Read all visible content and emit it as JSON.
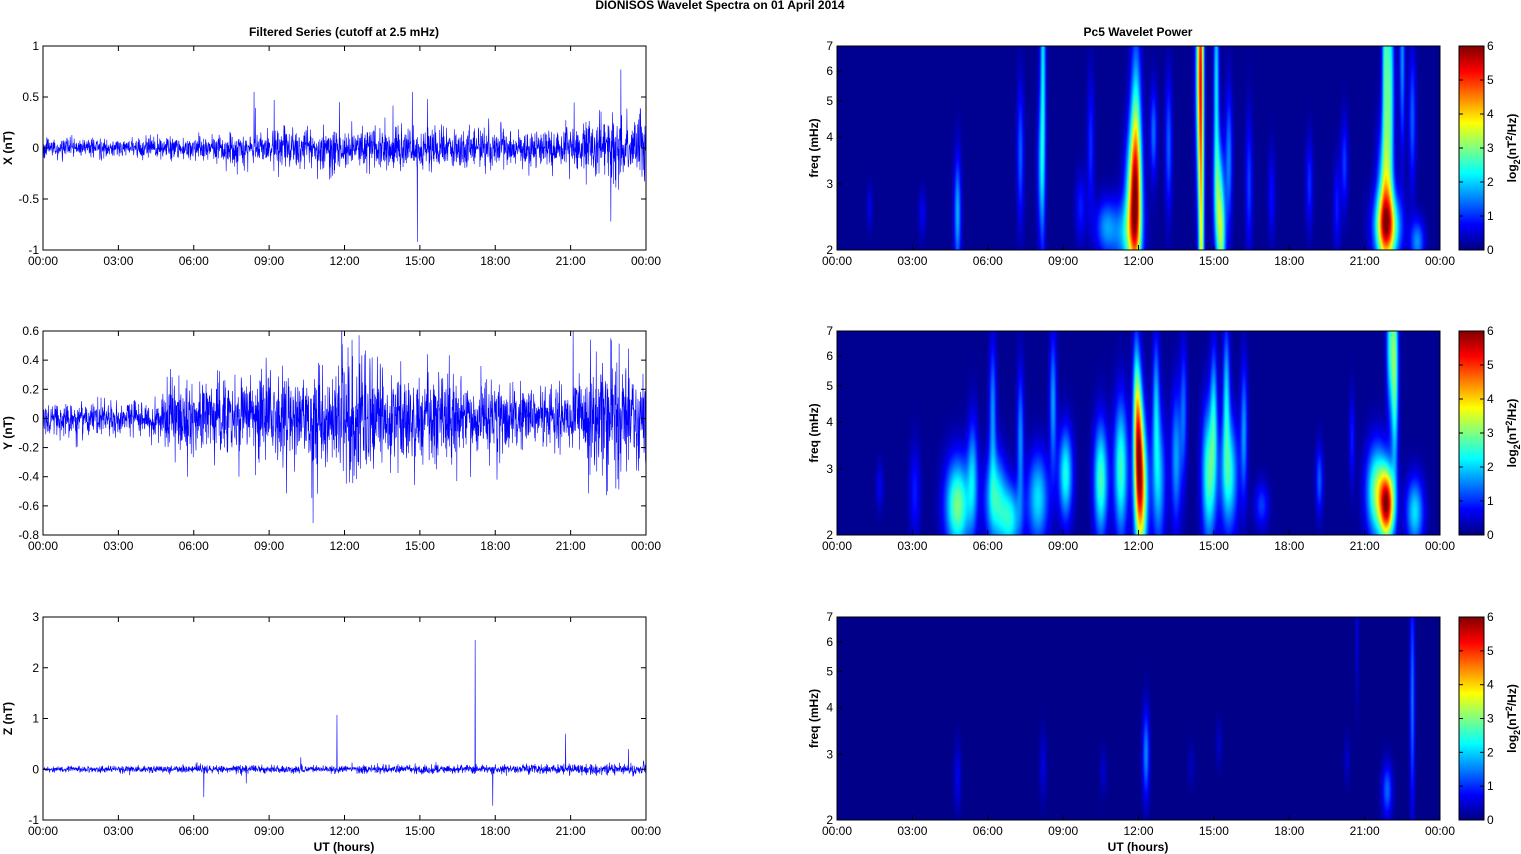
{
  "figure": {
    "suptitle": "DIONISOS Wavelet Spectra on 01 April     2014",
    "left_title": "Filtered Series (cutoff at 2.5 mHz)",
    "right_title": "Pc5 Wavelet Power",
    "xlabel": "UT (hours)",
    "freq_label": "freq (mHz)",
    "colorbar_label": "log2(nT2/Hz)"
  },
  "chart_data": [
    {
      "id": "series-x",
      "type": "line",
      "series_name": "X",
      "ylabel": "X (nT)",
      "ylim": [
        -1,
        1
      ],
      "yticks": [
        -1,
        -0.5,
        0,
        0.5,
        1
      ],
      "yticklabels": [
        "-1",
        "-0.5",
        "0",
        "0.5",
        "1"
      ],
      "xlim": [
        0,
        24
      ],
      "xticks": [
        0,
        3,
        6,
        9,
        12,
        15,
        18,
        21,
        24
      ],
      "xticklabels": [
        "00:00",
        "03:00",
        "06:00",
        "09:00",
        "12:00",
        "15:00",
        "18:00",
        "21:00",
        "00:00"
      ],
      "color": "#0000ff",
      "noise_std": 0.05,
      "envelope": [
        [
          0,
          0.045
        ],
        [
          4,
          0.045
        ],
        [
          7.5,
          0.07
        ],
        [
          9,
          0.09
        ],
        [
          12,
          0.1
        ],
        [
          14.5,
          0.12
        ],
        [
          16,
          0.1
        ],
        [
          19,
          0.08
        ],
        [
          21,
          0.1
        ],
        [
          22.5,
          0.17
        ],
        [
          24,
          0.13
        ]
      ],
      "spikes": [
        [
          8.4,
          0.55
        ],
        [
          9.2,
          0.47
        ],
        [
          11.8,
          0.45
        ],
        [
          14.9,
          -0.92
        ],
        [
          14.7,
          0.55
        ],
        [
          15.3,
          0.48
        ],
        [
          22.6,
          -0.72
        ],
        [
          23.0,
          0.77
        ],
        [
          23.7,
          0.28
        ]
      ]
    },
    {
      "id": "series-y",
      "type": "line",
      "series_name": "Y",
      "ylabel": "Y (nT)",
      "ylim": [
        -0.8,
        0.6
      ],
      "yticks": [
        -0.8,
        -0.6,
        -0.4,
        -0.2,
        0,
        0.2,
        0.4,
        0.6
      ],
      "yticklabels": [
        "-0.8",
        "-0.6",
        "-0.4",
        "-0.2",
        "0",
        "0.2",
        "0.4",
        "0.6"
      ],
      "xlim": [
        0,
        24
      ],
      "xticks": [
        0,
        3,
        6,
        9,
        12,
        15,
        18,
        21,
        24
      ],
      "xticklabels": [
        "00:00",
        "03:00",
        "06:00",
        "09:00",
        "12:00",
        "15:00",
        "18:00",
        "21:00",
        "00:00"
      ],
      "color": "#0000ff",
      "noise_std": 0.05,
      "envelope": [
        [
          0,
          0.06
        ],
        [
          4.5,
          0.06
        ],
        [
          5,
          0.12
        ],
        [
          8,
          0.14
        ],
        [
          11,
          0.15
        ],
        [
          12.2,
          0.22
        ],
        [
          15,
          0.15
        ],
        [
          18,
          0.12
        ],
        [
          21,
          0.1
        ],
        [
          22.3,
          0.2
        ],
        [
          24,
          0.16
        ]
      ],
      "spikes": [
        [
          12.3,
          0.54
        ],
        [
          12.2,
          -0.44
        ],
        [
          7.8,
          -0.4
        ],
        [
          15.3,
          0.44
        ],
        [
          21.1,
          0.6
        ],
        [
          22.6,
          0.55
        ],
        [
          22.8,
          -0.48
        ],
        [
          23.3,
          0.48
        ],
        [
          23.7,
          -0.36
        ]
      ]
    },
    {
      "id": "series-z",
      "type": "line",
      "series_name": "Z",
      "ylabel": "Z (nT)",
      "ylim": [
        -1,
        3
      ],
      "yticks": [
        -1,
        0,
        1,
        2,
        3
      ],
      "yticklabels": [
        "-1",
        "0",
        "1",
        "2",
        "3"
      ],
      "xlim": [
        0,
        24
      ],
      "xticks": [
        0,
        3,
        6,
        9,
        12,
        15,
        18,
        21,
        24
      ],
      "xticklabels": [
        "00:00",
        "03:00",
        "06:00",
        "09:00",
        "12:00",
        "15:00",
        "18:00",
        "21:00",
        "00:00"
      ],
      "color": "#0000ff",
      "noise_std": 0.035,
      "envelope": [
        [
          0,
          0.03
        ],
        [
          5,
          0.035
        ],
        [
          12,
          0.04
        ],
        [
          17,
          0.045
        ],
        [
          21,
          0.05
        ],
        [
          24,
          0.06
        ]
      ],
      "spikes": [
        [
          6.4,
          -0.55
        ],
        [
          11.7,
          1.07
        ],
        [
          17.2,
          2.55
        ],
        [
          17.9,
          -0.72
        ],
        [
          20.8,
          0.7
        ],
        [
          23.3,
          0.4
        ]
      ]
    },
    {
      "id": "wavelet-x",
      "type": "heatmap",
      "series_name": "X",
      "ylabel": "freq (mHz)",
      "yscale": "log",
      "ylim": [
        2,
        7
      ],
      "yticks": [
        2,
        3,
        4,
        5,
        6,
        7
      ],
      "yticklabels": [
        "2",
        "3",
        "4",
        "5",
        "6",
        "7"
      ],
      "xlim": [
        0,
        24
      ],
      "xticks": [
        0,
        3,
        6,
        9,
        12,
        15,
        18,
        21,
        24
      ],
      "xticklabels": [
        "00:00",
        "03:00",
        "06:00",
        "09:00",
        "12:00",
        "15:00",
        "18:00",
        "21:00",
        "00:00"
      ],
      "colorbar": {
        "range": [
          0,
          6
        ],
        "ticks": [
          0,
          1,
          2,
          3,
          4,
          5,
          6
        ],
        "ticklabels": [
          "0",
          "1",
          "2",
          "3",
          "4",
          "5",
          "6"
        ],
        "colormap": "jet"
      },
      "background": 0.1,
      "blobs": [
        [
          11.8,
          2.7,
          3.4,
          0.22,
          0.3
        ],
        [
          11.9,
          3.4,
          3.0,
          0.15,
          0.5
        ],
        [
          11.5,
          2.2,
          1.5,
          0.4,
          0.15
        ],
        [
          14.5,
          3.6,
          3.6,
          0.08,
          1.6
        ],
        [
          14.4,
          6.0,
          2.6,
          0.1,
          0.5
        ],
        [
          15.2,
          2.8,
          2.2,
          0.15,
          0.25
        ],
        [
          15.3,
          2.1,
          2.2,
          0.12,
          0.2
        ],
        [
          15.1,
          5.5,
          2.0,
          0.08,
          0.5
        ],
        [
          15.6,
          3.5,
          1.4,
          0.1,
          0.3
        ],
        [
          21.9,
          2.3,
          3.8,
          0.35,
          0.15
        ],
        [
          21.8,
          2.8,
          2.4,
          0.2,
          0.3
        ],
        [
          22.0,
          5.5,
          2.5,
          0.12,
          0.5
        ],
        [
          21.8,
          6.5,
          1.9,
          0.08,
          0.5
        ],
        [
          22.5,
          6.5,
          1.5,
          0.08,
          0.4
        ],
        [
          23.1,
          2.1,
          1.5,
          0.2,
          0.1
        ],
        [
          22.9,
          4.5,
          1.2,
          0.1,
          0.3
        ],
        [
          8.2,
          6.0,
          2.0,
          0.08,
          0.7
        ],
        [
          8.1,
          3.3,
          1.2,
          0.1,
          0.3
        ],
        [
          7.3,
          3.6,
          1.2,
          0.1,
          0.3
        ],
        [
          4.8,
          2.5,
          1.7,
          0.1,
          0.25
        ],
        [
          10.7,
          2.3,
          1.4,
          0.3,
          0.12
        ],
        [
          10.1,
          3.8,
          0.9,
          0.1,
          0.3
        ],
        [
          12.6,
          4.1,
          1.3,
          0.1,
          0.2
        ],
        [
          13.2,
          3.8,
          1.2,
          0.1,
          0.3
        ],
        [
          16.4,
          3.0,
          1.0,
          0.1,
          0.3
        ],
        [
          18.8,
          3.0,
          0.9,
          0.1,
          0.2
        ],
        [
          19.9,
          2.6,
          0.8,
          0.1,
          0.2
        ],
        [
          20.2,
          3.4,
          1.0,
          0.1,
          0.2
        ],
        [
          3.4,
          2.5,
          0.6,
          0.1,
          0.1
        ],
        [
          1.3,
          2.6,
          0.5,
          0.08,
          0.1
        ],
        [
          9.7,
          2.6,
          0.8,
          0.15,
          0.15
        ],
        [
          17.3,
          2.8,
          0.7,
          0.1,
          0.2
        ]
      ]
    },
    {
      "id": "wavelet-y",
      "type": "heatmap",
      "series_name": "Y",
      "ylabel": "freq (mHz)",
      "yscale": "log",
      "ylim": [
        2,
        7
      ],
      "yticks": [
        2,
        3,
        4,
        5,
        6,
        7
      ],
      "yticklabels": [
        "2",
        "3",
        "4",
        "5",
        "6",
        "7"
      ],
      "xlim": [
        0,
        24
      ],
      "xticks": [
        0,
        3,
        6,
        9,
        12,
        15,
        18,
        21,
        24
      ],
      "xticklabels": [
        "00:00",
        "03:00",
        "06:00",
        "09:00",
        "12:00",
        "15:00",
        "18:00",
        "21:00",
        "00:00"
      ],
      "colorbar": {
        "range": [
          0,
          6
        ],
        "ticks": [
          0,
          1,
          2,
          3,
          4,
          5,
          6
        ],
        "ticklabels": [
          "0",
          "1",
          "2",
          "3",
          "4",
          "5",
          "6"
        ],
        "colormap": "jet"
      },
      "background": 0.1,
      "blobs": [
        [
          12.1,
          2.6,
          4.2,
          0.18,
          0.3
        ],
        [
          12.0,
          3.6,
          3.2,
          0.12,
          0.3
        ],
        [
          11.3,
          3.0,
          2.5,
          0.2,
          0.3
        ],
        [
          10.5,
          2.8,
          2.6,
          0.2,
          0.25
        ],
        [
          9.1,
          2.9,
          2.3,
          0.2,
          0.2
        ],
        [
          4.8,
          2.4,
          2.9,
          0.35,
          0.2
        ],
        [
          6.3,
          2.5,
          2.2,
          0.3,
          0.2
        ],
        [
          6.9,
          2.2,
          2.1,
          0.3,
          0.15
        ],
        [
          8.0,
          2.5,
          2.0,
          0.3,
          0.2
        ],
        [
          5.4,
          2.9,
          1.6,
          0.15,
          0.25
        ],
        [
          6.2,
          4.3,
          1.5,
          0.1,
          0.3
        ],
        [
          7.3,
          3.6,
          1.5,
          0.1,
          0.3
        ],
        [
          8.6,
          4.5,
          1.6,
          0.1,
          0.3
        ],
        [
          11.9,
          4.8,
          1.5,
          0.1,
          0.3
        ],
        [
          12.7,
          4.6,
          1.5,
          0.1,
          0.3
        ],
        [
          12.8,
          2.8,
          1.8,
          0.2,
          0.3
        ],
        [
          13.5,
          3.2,
          1.6,
          0.15,
          0.3
        ],
        [
          13.8,
          4.3,
          1.2,
          0.1,
          0.3
        ],
        [
          14.8,
          2.9,
          2.6,
          0.2,
          0.3
        ],
        [
          15.6,
          2.9,
          2.3,
          0.25,
          0.25
        ],
        [
          15.0,
          4.3,
          1.6,
          0.1,
          0.3
        ],
        [
          15.5,
          4.8,
          1.8,
          0.1,
          0.3
        ],
        [
          16.2,
          3.8,
          1.5,
          0.1,
          0.3
        ],
        [
          16.9,
          2.4,
          1.0,
          0.2,
          0.1
        ],
        [
          19.2,
          2.8,
          1.2,
          0.1,
          0.15
        ],
        [
          21.5,
          2.6,
          3.0,
          0.3,
          0.2
        ],
        [
          21.9,
          2.4,
          4.8,
          0.2,
          0.15
        ],
        [
          22.2,
          5.6,
          2.8,
          0.1,
          0.45
        ],
        [
          22.0,
          6.5,
          2.0,
          0.1,
          0.3
        ],
        [
          23.0,
          2.3,
          2.0,
          0.25,
          0.15
        ],
        [
          3.1,
          2.6,
          0.8,
          0.15,
          0.2
        ],
        [
          1.7,
          2.7,
          0.6,
          0.1,
          0.1
        ],
        [
          20.5,
          3.6,
          0.8,
          0.08,
          0.2
        ]
      ]
    },
    {
      "id": "wavelet-z",
      "type": "heatmap",
      "series_name": "Z",
      "ylabel": "freq (mHz)",
      "yscale": "log",
      "ylim": [
        2,
        7
      ],
      "yticks": [
        2,
        3,
        4,
        5,
        6,
        7
      ],
      "yticklabels": [
        "2",
        "3",
        "4",
        "5",
        "6",
        "7"
      ],
      "xlim": [
        0,
        24
      ],
      "xticks": [
        0,
        3,
        6,
        9,
        12,
        15,
        18,
        21,
        24
      ],
      "xticklabels": [
        "00:00",
        "03:00",
        "06:00",
        "09:00",
        "12:00",
        "15:00",
        "18:00",
        "21:00",
        "00:00"
      ],
      "colorbar": {
        "range": [
          0,
          6
        ],
        "ticks": [
          0,
          1,
          2,
          3,
          4,
          5,
          6
        ],
        "ticklabels": [
          "0",
          "1",
          "2",
          "3",
          "4",
          "5",
          "6"
        ],
        "colormap": "jet"
      },
      "background": 0.05,
      "blobs": [
        [
          12.3,
          3.0,
          1.5,
          0.1,
          0.2
        ],
        [
          21.9,
          2.4,
          1.3,
          0.15,
          0.12
        ],
        [
          22.9,
          4.2,
          1.4,
          0.07,
          0.5
        ],
        [
          4.8,
          2.6,
          0.6,
          0.1,
          0.15
        ],
        [
          8.2,
          2.8,
          0.5,
          0.1,
          0.15
        ],
        [
          10.6,
          2.7,
          0.4,
          0.1,
          0.1
        ],
        [
          15.2,
          3.2,
          0.4,
          0.08,
          0.1
        ],
        [
          20.3,
          2.9,
          0.4,
          0.08,
          0.1
        ],
        [
          20.7,
          6.3,
          0.5,
          0.05,
          0.3
        ],
        [
          14.1,
          2.8,
          0.3,
          0.1,
          0.1
        ]
      ]
    }
  ]
}
